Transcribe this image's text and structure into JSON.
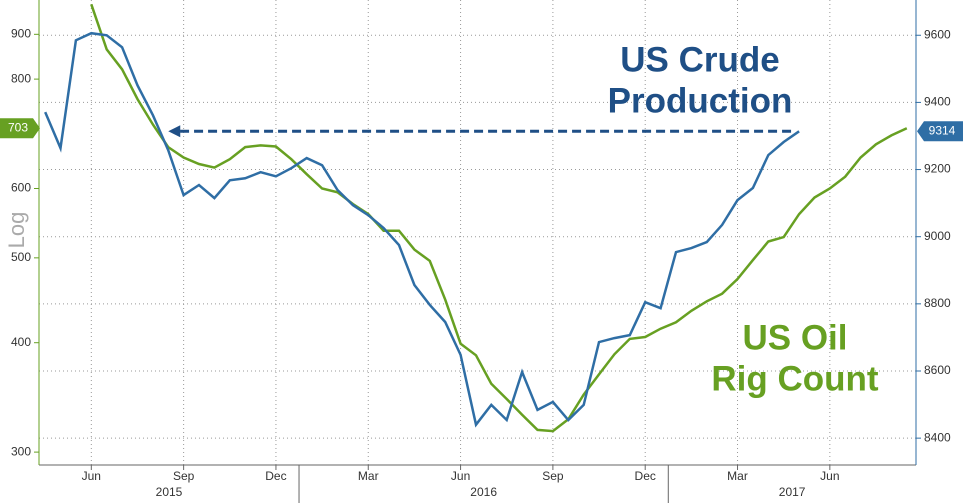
{
  "chart_data": {
    "type": "line",
    "categories": [
      null,
      null,
      null,
      "Jun",
      null,
      null,
      null,
      null,
      null,
      "Sep",
      null,
      null,
      null,
      null,
      null,
      "Dec",
      null,
      null,
      null,
      null,
      null,
      "Mar",
      null,
      null,
      null,
      null,
      null,
      "Jun",
      null,
      null,
      null,
      null,
      null,
      "Sep",
      null,
      null,
      null,
      null,
      null,
      "Dec",
      null,
      null,
      null,
      null,
      null,
      "Mar",
      null,
      null,
      null,
      null,
      null,
      "Jun",
      null,
      null,
      null,
      null,
      null
    ],
    "years": [
      "2015",
      "2016",
      "2017"
    ],
    "y_label": "Log",
    "log_y": true,
    "ylim": [
      290,
      985
    ],
    "yticks": [
      300,
      400,
      500,
      600,
      800,
      900
    ],
    "y2lim": [
      8320,
      9705
    ],
    "y2ticks": [
      8400,
      8600,
      8800,
      9000,
      9200,
      9400,
      9600
    ],
    "grid": true,
    "series": [
      {
        "annotation": [
          "US Oil",
          "Rig Count"
        ],
        "color": "#67a022",
        "values": [
          null,
          null,
          null,
          974,
          865,
          821,
          759,
          710,
          669,
          651,
          640,
          634,
          648,
          669,
          672,
          670,
          648,
          623,
          600,
          594,
          576,
          561,
          537,
          537,
          511,
          496,
          448,
          399,
          387,
          359,
          345,
          331,
          318,
          317,
          327,
          349,
          368,
          388,
          404,
          406,
          415,
          422,
          435,
          446,
          455,
          473,
          497,
          522,
          528,
          561,
          586,
          600,
          619,
          651,
          674,
          690,
          703
        ]
      },
      {
        "annotation": [
          "US Crude",
          "Production"
        ],
        "color": "#2f6ea5",
        "annotation_color": "#1f4f86",
        "axis": "y2",
        "values": [
          9371,
          9264,
          9585,
          9606,
          9600,
          9564,
          9451,
          9362,
          9258,
          9124,
          9154,
          9115,
          9168,
          9174,
          9192,
          9180,
          9204,
          9234,
          9213,
          9139,
          9094,
          9064,
          9026,
          8975,
          8856,
          8797,
          8746,
          8648,
          8440,
          8499,
          8454,
          8597,
          8484,
          8508,
          8454,
          8499,
          8686,
          8698,
          8707,
          8805,
          8787,
          8954,
          8966,
          8984,
          9035,
          9109,
          9145,
          9243,
          9282,
          9314,
          null,
          null,
          null,
          null,
          null,
          null,
          null
        ]
      }
    ]
  }
}
